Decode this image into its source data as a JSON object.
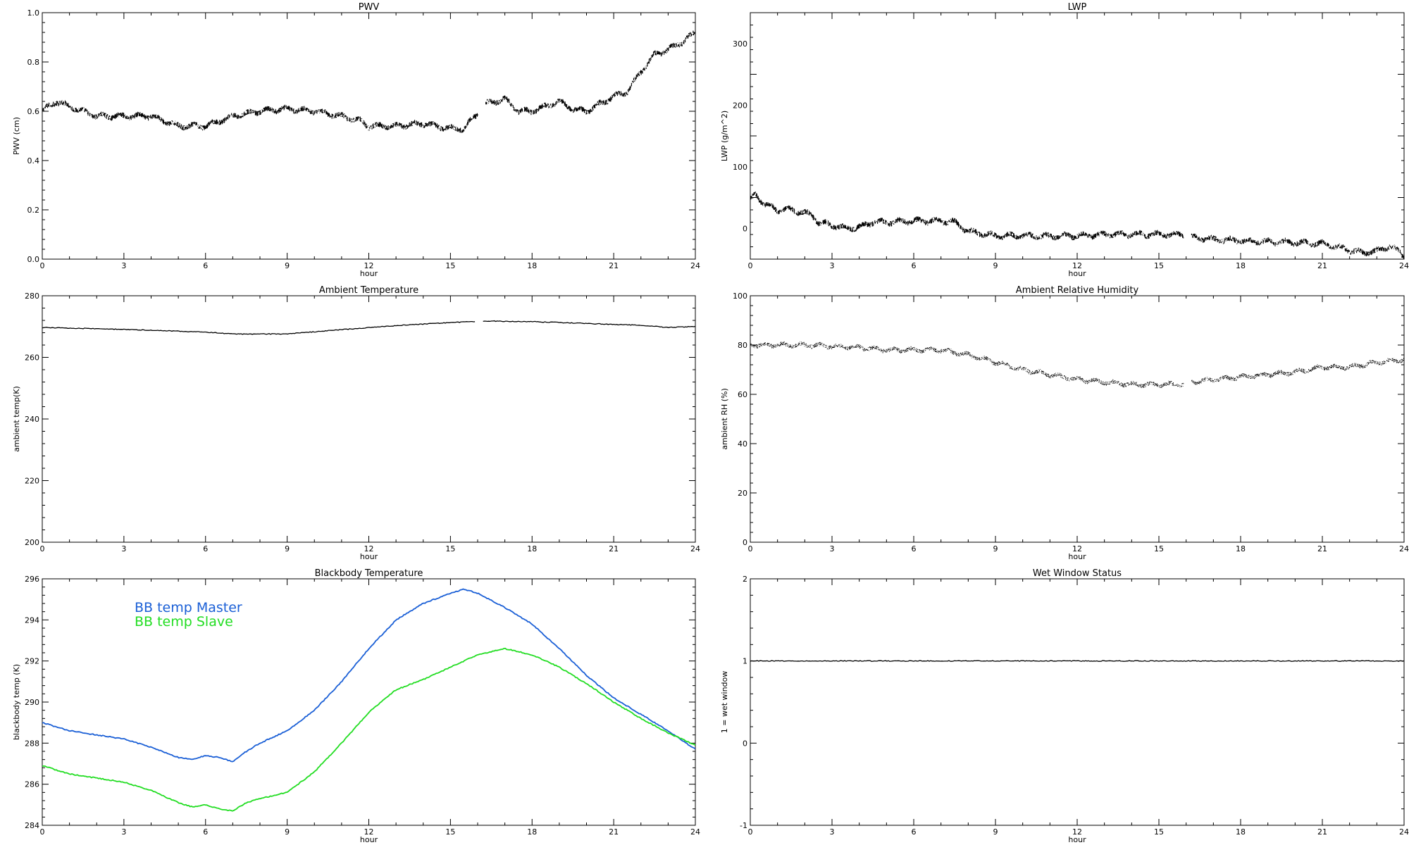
{
  "chart_data": [
    {
      "type": "line",
      "title": "PWV",
      "xlabel": "hour",
      "ylabel": "PWV (cm)",
      "xlim": [
        0,
        24
      ],
      "ylim": [
        0,
        1.0
      ],
      "xticks": [
        0,
        3,
        6,
        9,
        12,
        15,
        18,
        21,
        24
      ],
      "yticks": [
        "0.0",
        "0.2",
        "0.4",
        "0.6",
        "0.8",
        "1.0"
      ],
      "series": [
        {
          "color": "#000000",
          "style": "noisy",
          "segments": [
            [
              [
                0,
                0.6
              ],
              [
                0.5,
                0.64
              ],
              [
                1,
                0.62
              ],
              [
                1.5,
                0.6
              ],
              [
                2,
                0.58
              ],
              [
                3,
                0.58
              ],
              [
                4,
                0.58
              ],
              [
                4.5,
                0.56
              ],
              [
                5,
                0.54
              ],
              [
                6,
                0.54
              ],
              [
                7,
                0.58
              ],
              [
                8,
                0.6
              ],
              [
                9,
                0.61
              ],
              [
                10,
                0.6
              ],
              [
                11,
                0.58
              ],
              [
                11.7,
                0.56
              ],
              [
                12,
                0.54
              ],
              [
                13,
                0.54
              ],
              [
                14,
                0.55
              ],
              [
                15,
                0.53
              ],
              [
                15.5,
                0.53
              ],
              [
                15.8,
                0.57
              ],
              [
                16,
                0.59
              ]
            ],
            [
              [
                16.3,
                0.63
              ],
              [
                17,
                0.65
              ],
              [
                17.5,
                0.6
              ],
              [
                18,
                0.6
              ],
              [
                19,
                0.64
              ],
              [
                19.5,
                0.61
              ],
              [
                20,
                0.6
              ],
              [
                20.5,
                0.63
              ],
              [
                21,
                0.66
              ],
              [
                21.5,
                0.68
              ],
              [
                22,
                0.76
              ],
              [
                22.5,
                0.83
              ],
              [
                23,
                0.85
              ],
              [
                23.5,
                0.88
              ],
              [
                24,
                0.92
              ]
            ]
          ]
        }
      ]
    },
    {
      "type": "line",
      "title": "LWP",
      "xlabel": "hour",
      "ylabel": "LWP (g/m^2)",
      "xlim": [
        0,
        24
      ],
      "ylim": [
        -50,
        350
      ],
      "xticks": [
        0,
        3,
        6,
        9,
        12,
        15,
        18,
        21,
        24
      ],
      "yticks": [
        "0",
        "100",
        "200",
        "300"
      ],
      "series": [
        {
          "color": "#000000",
          "style": "noisy",
          "segments": [
            [
              [
                0,
                45
              ],
              [
                0.2,
                55
              ],
              [
                0.5,
                40
              ],
              [
                1,
                30
              ],
              [
                1.5,
                30
              ],
              [
                2,
                25
              ],
              [
                2.3,
                20
              ],
              [
                2.5,
                10
              ],
              [
                3,
                5
              ],
              [
                3.5,
                0
              ],
              [
                4,
                2
              ],
              [
                4.5,
                10
              ],
              [
                5,
                10
              ],
              [
                6,
                12
              ],
              [
                7,
                12
              ],
              [
                7.5,
                10
              ],
              [
                8,
                -5
              ],
              [
                9,
                -12
              ],
              [
                10,
                -12
              ],
              [
                11,
                -13
              ],
              [
                12,
                -12
              ],
              [
                13,
                -10
              ],
              [
                14,
                -10
              ],
              [
                15,
                -10
              ],
              [
                15.9,
                -10
              ]
            ],
            [
              [
                16.2,
                -15
              ],
              [
                17,
                -18
              ],
              [
                18,
                -20
              ],
              [
                19,
                -22
              ],
              [
                20,
                -23
              ],
              [
                21,
                -25
              ],
              [
                22,
                -35
              ],
              [
                22.5,
                -40
              ],
              [
                23,
                -37
              ],
              [
                23.5,
                -28
              ],
              [
                23.8,
                -38
              ],
              [
                24,
                -45
              ]
            ]
          ]
        }
      ]
    },
    {
      "type": "line",
      "title": "Ambient Temperature",
      "xlabel": "hour",
      "ylabel": "ambient temp(K)",
      "xlim": [
        0,
        24
      ],
      "ylim": [
        200,
        280
      ],
      "xticks": [
        0,
        3,
        6,
        9,
        12,
        15,
        18,
        21,
        24
      ],
      "yticks": [
        "200",
        "220",
        "240",
        "260",
        "280"
      ],
      "series": [
        {
          "color": "#000000",
          "style": "fine",
          "segments": [
            [
              [
                0,
                269.7
              ],
              [
                2,
                269.3
              ],
              [
                4,
                268.8
              ],
              [
                6,
                268.2
              ],
              [
                7,
                267.6
              ],
              [
                9,
                267.6
              ],
              [
                11,
                269.0
              ],
              [
                13,
                270.3
              ],
              [
                15,
                271.3
              ],
              [
                15.9,
                271.6
              ]
            ],
            [
              [
                16.2,
                271.8
              ],
              [
                18,
                271.6
              ],
              [
                20,
                271.0
              ],
              [
                22,
                270.4
              ],
              [
                23,
                269.7
              ],
              [
                24,
                270.0
              ]
            ]
          ]
        }
      ]
    },
    {
      "type": "line",
      "title": "Ambient Relative Humidity",
      "xlabel": "hour",
      "ylabel": "ambient RH (%)",
      "xlim": [
        0,
        24
      ],
      "ylim": [
        0,
        100
      ],
      "xticks": [
        0,
        3,
        6,
        9,
        12,
        15,
        18,
        21,
        24
      ],
      "yticks": [
        "0",
        "20",
        "40",
        "60",
        "80",
        "100"
      ],
      "series": [
        {
          "color": "#000000",
          "style": "dotted",
          "segments": [
            [
              [
                0,
                80
              ],
              [
                2,
                80
              ],
              [
                4,
                79
              ],
              [
                5,
                78
              ],
              [
                6,
                78
              ],
              [
                7,
                78
              ],
              [
                8,
                76
              ],
              [
                9,
                73
              ],
              [
                10,
                70
              ],
              [
                11,
                68
              ],
              [
                12,
                66
              ],
              [
                13,
                65
              ],
              [
                14,
                64
              ],
              [
                15,
                64
              ],
              [
                15.9,
                64
              ]
            ],
            [
              [
                16.2,
                65
              ],
              [
                17,
                66
              ],
              [
                18,
                67
              ],
              [
                19,
                68
              ],
              [
                20,
                69
              ],
              [
                21,
                71
              ],
              [
                22,
                71
              ],
              [
                23,
                73
              ],
              [
                24,
                74
              ]
            ]
          ]
        }
      ]
    },
    {
      "type": "line",
      "title": "Blackbody Temperature",
      "xlabel": "hour",
      "ylabel": "blackbody temp (K)",
      "xlim": [
        0,
        24
      ],
      "ylim": [
        284,
        296
      ],
      "xticks": [
        0,
        3,
        6,
        9,
        12,
        15,
        18,
        21,
        24
      ],
      "yticks": [
        "284",
        "286",
        "288",
        "290",
        "292",
        "294",
        "296"
      ],
      "legend_position": "top-left",
      "series": [
        {
          "name": "BB temp Master",
          "color": "#1a5fd6",
          "style": "smooth",
          "segments": [
            [
              [
                0,
                289.0
              ],
              [
                1,
                288.6
              ],
              [
                2,
                288.4
              ],
              [
                3,
                288.2
              ],
              [
                4,
                287.8
              ],
              [
                5,
                287.3
              ],
              [
                5.5,
                287.2
              ],
              [
                6,
                287.4
              ],
              [
                6.5,
                287.3
              ],
              [
                7,
                287.1
              ],
              [
                7.5,
                287.6
              ],
              [
                8,
                288.0
              ],
              [
                9,
                288.6
              ],
              [
                10,
                289.6
              ],
              [
                11,
                291.0
              ],
              [
                12,
                292.6
              ],
              [
                13,
                294.0
              ],
              [
                14,
                294.8
              ],
              [
                15,
                295.3
              ],
              [
                15.5,
                295.5
              ],
              [
                16,
                295.3
              ],
              [
                17,
                294.6
              ],
              [
                18,
                293.8
              ],
              [
                19,
                292.6
              ],
              [
                20,
                291.3
              ],
              [
                21,
                290.2
              ],
              [
                22,
                289.4
              ],
              [
                23,
                288.6
              ],
              [
                24,
                287.7
              ]
            ]
          ]
        },
        {
          "name": "BB temp Slave",
          "color": "#22dd22",
          "style": "smooth",
          "segments": [
            [
              [
                0,
                286.9
              ],
              [
                1,
                286.5
              ],
              [
                2,
                286.3
              ],
              [
                3,
                286.1
              ],
              [
                4,
                285.7
              ],
              [
                5,
                285.1
              ],
              [
                5.5,
                284.9
              ],
              [
                6,
                285.0
              ],
              [
                6.5,
                284.8
              ],
              [
                7,
                284.7
              ],
              [
                7.5,
                285.1
              ],
              [
                8,
                285.3
              ],
              [
                9,
                285.6
              ],
              [
                10,
                286.6
              ],
              [
                11,
                288.0
              ],
              [
                12,
                289.5
              ],
              [
                13,
                290.6
              ],
              [
                14,
                291.1
              ],
              [
                15,
                291.7
              ],
              [
                16,
                292.3
              ],
              [
                17,
                292.6
              ],
              [
                18,
                292.3
              ],
              [
                19,
                291.7
              ],
              [
                20,
                290.9
              ],
              [
                21,
                290.0
              ],
              [
                22,
                289.2
              ],
              [
                23,
                288.5
              ],
              [
                24,
                287.9
              ]
            ]
          ]
        }
      ]
    },
    {
      "type": "line",
      "title": "Wet Window Status",
      "xlabel": "hour",
      "ylabel": "1 = wet window",
      "xlim": [
        0,
        24
      ],
      "ylim": [
        -1,
        2
      ],
      "xticks": [
        0,
        3,
        6,
        9,
        12,
        15,
        18,
        21,
        24
      ],
      "yticks": [
        "-1",
        "0",
        "1",
        "2"
      ],
      "series": [
        {
          "color": "#000000",
          "style": "fine",
          "segments": [
            [
              [
                0,
                1
              ],
              [
                24,
                1
              ]
            ]
          ]
        }
      ]
    }
  ]
}
